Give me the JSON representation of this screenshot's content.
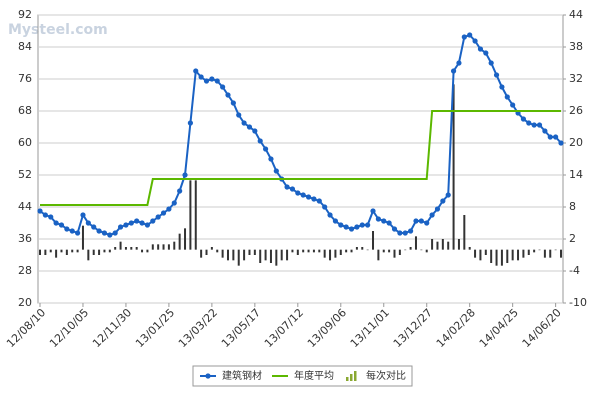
{
  "chart_data": {
    "type": "line",
    "watermark": "Mysteel.com",
    "categories": [
      "12/08/10",
      null,
      null,
      null,
      null,
      null,
      null,
      null,
      "12/10/05",
      null,
      null,
      null,
      null,
      null,
      null,
      null,
      "12/11/30",
      null,
      null,
      null,
      null,
      null,
      null,
      null,
      "13/01/25",
      null,
      null,
      null,
      null,
      null,
      null,
      null,
      "13/03/22",
      null,
      null,
      null,
      null,
      null,
      null,
      null,
      "13/05/17",
      null,
      null,
      null,
      null,
      null,
      null,
      null,
      "13/07/12",
      null,
      null,
      null,
      null,
      null,
      null,
      null,
      "13/09/06",
      null,
      null,
      null,
      null,
      null,
      null,
      null,
      "13/11/01",
      null,
      null,
      null,
      null,
      null,
      null,
      null,
      "13/12/27",
      null,
      null,
      null,
      null,
      null,
      null,
      null,
      "14/02/28",
      null,
      null,
      null,
      null,
      null,
      null,
      null,
      "14/04/25",
      null,
      null,
      null,
      null,
      null,
      null,
      null,
      "14/06/20",
      null
    ],
    "series": [
      {
        "name": "建筑钢材",
        "type": "line",
        "color": "#1a62c4",
        "markers": true,
        "values": [
          43,
          42,
          41.5,
          40,
          39.5,
          38.5,
          38,
          37.5,
          42,
          40,
          39,
          38,
          37.5,
          37,
          37.5,
          39,
          39.5,
          40,
          40.5,
          40,
          39.5,
          40.5,
          41.5,
          42.5,
          43.5,
          45,
          48,
          52,
          65,
          78,
          76.5,
          75.5,
          76,
          75.5,
          74,
          72,
          70,
          67,
          65,
          64,
          63,
          60.5,
          58.5,
          56,
          53,
          51,
          49,
          48.5,
          47.5,
          47,
          46.5,
          46,
          45.5,
          44,
          42,
          40.5,
          39.5,
          39,
          38.5,
          39,
          39.5,
          39.5,
          43,
          41,
          40.5,
          40,
          38.5,
          37.5,
          37.5,
          38,
          40.5,
          40.5,
          40,
          42,
          43.5,
          45.5,
          47,
          78,
          80,
          86.5,
          87,
          85.5,
          83.5,
          82.5,
          80,
          77,
          74,
          71.5,
          69.5,
          67.5,
          66,
          65,
          64.5,
          64.5,
          63,
          61.5,
          61.5,
          60
        ]
      },
      {
        "name": "年度平均",
        "type": "line",
        "color": "#5cb800",
        "markers": false,
        "values": [
          44.5,
          44.5,
          44.5,
          44.5,
          44.5,
          44.5,
          44.5,
          44.5,
          44.5,
          44.5,
          44.5,
          44.5,
          44.5,
          44.5,
          44.5,
          44.5,
          44.5,
          44.5,
          44.5,
          44.5,
          44.5,
          51,
          51,
          51,
          51,
          51,
          51,
          51,
          51,
          51,
          51,
          51,
          51,
          51,
          51,
          51,
          51,
          51,
          51,
          51,
          51,
          51,
          51,
          51,
          51,
          51,
          51,
          51,
          51,
          51,
          51,
          51,
          51,
          51,
          51,
          51,
          51,
          51,
          51,
          51,
          51,
          51,
          51,
          51,
          51,
          51,
          51,
          51,
          51,
          51,
          51,
          51,
          51,
          68,
          68,
          68,
          68,
          68,
          68,
          68,
          68,
          68,
          68,
          68,
          68,
          68,
          68,
          68,
          68,
          68,
          68,
          68,
          68,
          68,
          68,
          68,
          68,
          68
        ]
      },
      {
        "name": "每次对比",
        "type": "bar",
        "axis": "y2",
        "color": "#333333",
        "values": [
          -1,
          -1,
          -0.5,
          -1.5,
          -0.5,
          -1,
          -0.5,
          -0.5,
          4.5,
          -2,
          -1,
          -1,
          -0.5,
          -0.5,
          0.5,
          1.5,
          0.5,
          0.5,
          0.5,
          -0.5,
          -0.5,
          1,
          1,
          1,
          1,
          1.5,
          3,
          4,
          13,
          13,
          -1.5,
          -1,
          0.5,
          -0.5,
          -1.5,
          -2,
          -2,
          -3,
          -2,
          -1,
          -1,
          -2.5,
          -2,
          -2.5,
          -3,
          -2,
          -2,
          -0.5,
          -1,
          -0.5,
          -0.5,
          -0.5,
          -0.5,
          -1.5,
          -2,
          -1.5,
          -1,
          -0.5,
          -0.5,
          0.5,
          0.5,
          0,
          3.5,
          -2,
          -0.5,
          -0.5,
          -1.5,
          -1,
          0,
          0.5,
          2.5,
          0,
          -0.5,
          2,
          1.5,
          2,
          1.5,
          31,
          2,
          6.5,
          0.5,
          -1.5,
          -2,
          -1,
          -2.5,
          -3,
          -3,
          -2.5,
          -2,
          -2,
          -1.5,
          -1,
          -0.5,
          0,
          -1.5,
          -1.5,
          0,
          -1.5
        ]
      }
    ],
    "ylim": [
      20,
      92
    ],
    "yticks": [
      20,
      28,
      36,
      44,
      52,
      60,
      68,
      76,
      84,
      92
    ],
    "y2lim": [
      -10,
      44
    ],
    "y2ticks": [
      -10,
      -4,
      2,
      8,
      14,
      20,
      26,
      32,
      38,
      44
    ],
    "grid": true,
    "legend": "bottom"
  }
}
